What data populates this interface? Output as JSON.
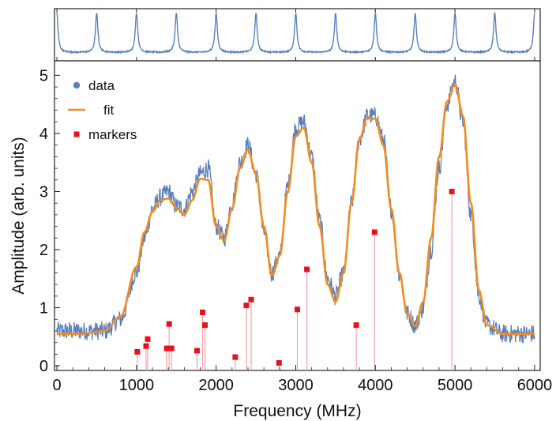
{
  "chart_data": {
    "type": "line",
    "xlabel": "Frequency (MHz)",
    "ylabel": "Amplitude (arb. units)",
    "xlim": [
      -30,
      6070
    ],
    "ylim": [
      -0.08,
      5.25
    ],
    "x_ticks": [
      0,
      1000,
      2000,
      3000,
      4000,
      5000,
      6000
    ],
    "y_ticks": [
      0,
      1,
      2,
      3,
      4,
      5
    ],
    "grid": false,
    "legend_position": "top-left",
    "colors": {
      "data": "#5b7fbf",
      "fit": "#f28c1e",
      "markers": "#e8101c",
      "marker_stems": "#f4a0a6"
    },
    "series": [
      {
        "name": "data",
        "style": "noisy-trace",
        "x": [
          0,
          300,
          600,
          800,
          1000,
          1100,
          1200,
          1300,
          1400,
          1500,
          1600,
          1700,
          1800,
          1900,
          2000,
          2100,
          2200,
          2300,
          2400,
          2500,
          2600,
          2700,
          2800,
          2900,
          3000,
          3100,
          3200,
          3300,
          3400,
          3500,
          3600,
          3700,
          3800,
          3900,
          4000,
          4100,
          4200,
          4300,
          4400,
          4500,
          4600,
          4700,
          4800,
          4900,
          5000,
          5100,
          5200,
          5300,
          5400,
          5600,
          5800,
          6000
        ],
        "y": [
          0.6,
          0.6,
          0.6,
          0.8,
          1.6,
          2.2,
          2.7,
          2.9,
          3.0,
          2.75,
          2.7,
          3.0,
          3.3,
          3.4,
          2.4,
          2.2,
          2.8,
          3.5,
          3.8,
          3.3,
          2.3,
          1.6,
          1.9,
          3.1,
          4.1,
          4.2,
          3.6,
          2.5,
          1.5,
          1.2,
          1.6,
          2.8,
          3.9,
          4.3,
          4.3,
          3.9,
          2.7,
          1.6,
          0.9,
          0.7,
          1.0,
          2.0,
          3.4,
          4.5,
          4.9,
          4.2,
          2.6,
          1.2,
          0.7,
          0.55,
          0.55,
          0.55
        ]
      },
      {
        "name": "fit",
        "style": "smooth-line",
        "x": [
          0,
          300,
          600,
          800,
          1000,
          1100,
          1200,
          1300,
          1400,
          1500,
          1600,
          1700,
          1800,
          1900,
          2000,
          2100,
          2200,
          2300,
          2400,
          2500,
          2600,
          2700,
          2800,
          2900,
          3000,
          3100,
          3200,
          3300,
          3400,
          3500,
          3600,
          3700,
          3800,
          3900,
          4000,
          4100,
          4200,
          4300,
          4400,
          4500,
          4600,
          4700,
          4800,
          4900,
          5000,
          5100,
          5200,
          5300,
          5400,
          5600,
          5800,
          6000
        ],
        "y": [
          0.55,
          0.55,
          0.6,
          0.85,
          1.7,
          2.3,
          2.65,
          2.85,
          2.88,
          2.72,
          2.6,
          2.85,
          3.22,
          3.2,
          2.4,
          2.15,
          2.7,
          3.4,
          3.72,
          3.3,
          2.4,
          1.55,
          1.9,
          3.0,
          3.95,
          4.1,
          3.5,
          2.4,
          1.4,
          1.1,
          1.6,
          2.8,
          3.9,
          4.28,
          4.25,
          3.8,
          2.7,
          1.6,
          0.9,
          0.68,
          1.1,
          2.2,
          3.6,
          4.55,
          4.85,
          4.3,
          2.8,
          1.3,
          0.7,
          0.55,
          0.55,
          0.55
        ]
      },
      {
        "name": "markers",
        "style": "stem",
        "x": [
          1010,
          1120,
          1140,
          1380,
          1410,
          1440,
          1760,
          1830,
          1860,
          2240,
          2380,
          2440,
          2790,
          3020,
          3140,
          3760,
          3990,
          4960
        ],
        "y": [
          0.24,
          0.34,
          0.46,
          0.3,
          0.72,
          0.3,
          0.26,
          0.92,
          0.7,
          0.15,
          1.04,
          1.14,
          0.05,
          0.97,
          1.66,
          0.7,
          2.3,
          3.0
        ]
      }
    ],
    "inset": {
      "type": "line",
      "description_free": true,
      "color": "#5b7fbf",
      "peak_positions": [
        0,
        500,
        1000,
        1500,
        2000,
        2500,
        3000,
        3500,
        4000,
        4500,
        5000,
        5500,
        6000
      ],
      "baseline": 0.05,
      "peak_height": 1.0
    }
  }
}
